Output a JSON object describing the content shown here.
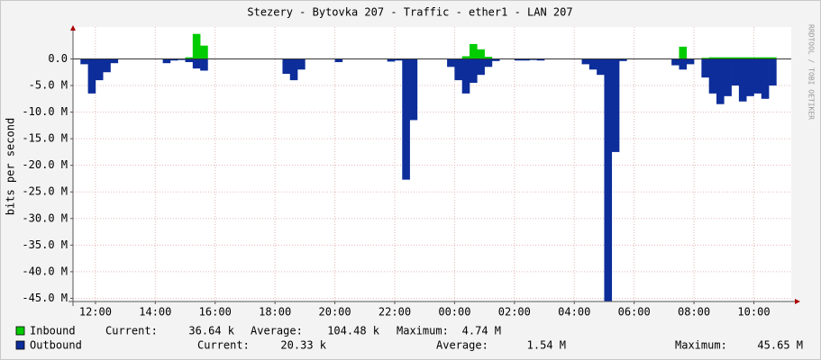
{
  "chart_data": {
    "type": "area",
    "title": "Stezery - Bytovka 207 - Traffic - ether1 - LAN 207",
    "y_label": "bits per second",
    "watermark": "RRDTOOL / TOBI OETIKER",
    "x": [
      11.25,
      11.5,
      11.75,
      12.0,
      12.25,
      12.5,
      12.75,
      13.0,
      13.25,
      13.5,
      13.75,
      14.0,
      14.25,
      14.5,
      14.75,
      15.0,
      15.25,
      15.5,
      15.75,
      16.0,
      16.25,
      16.5,
      16.75,
      17.0,
      17.25,
      17.5,
      17.75,
      18.0,
      18.25,
      18.5,
      18.75,
      19.0,
      19.25,
      19.5,
      19.75,
      20.0,
      20.25,
      20.5,
      20.75,
      21.0,
      21.25,
      21.5,
      21.75,
      22.0,
      22.25,
      22.5,
      22.75,
      23.0,
      23.25,
      23.5,
      23.75,
      24.0,
      24.25,
      24.5,
      24.75,
      25.0,
      25.25,
      25.5,
      25.75,
      26.0,
      26.25,
      26.5,
      26.75,
      27.0,
      27.25,
      27.5,
      27.75,
      28.0,
      28.25,
      28.5,
      28.75,
      29.0,
      29.25,
      29.5,
      29.75,
      30.0,
      30.25,
      30.5,
      30.75,
      31.0,
      31.25,
      31.5,
      31.75,
      32.0,
      32.25,
      32.5,
      32.75,
      33.0,
      33.25,
      33.5,
      33.75,
      34.0,
      34.25,
      34.5,
      34.75,
      35.0
    ],
    "xlim": [
      11.25,
      35.25
    ],
    "xticks": [
      {
        "value": 12,
        "label": "12:00"
      },
      {
        "value": 14,
        "label": "14:00"
      },
      {
        "value": 16,
        "label": "16:00"
      },
      {
        "value": 18,
        "label": "18:00"
      },
      {
        "value": 20,
        "label": "20:00"
      },
      {
        "value": 22,
        "label": "22:00"
      },
      {
        "value": 24,
        "label": "00:00"
      },
      {
        "value": 26,
        "label": "02:00"
      },
      {
        "value": 28,
        "label": "04:00"
      },
      {
        "value": 30,
        "label": "06:00"
      },
      {
        "value": 32,
        "label": "08:00"
      },
      {
        "value": 34,
        "label": "10:00"
      }
    ],
    "ylim": [
      -45.6,
      6.0
    ],
    "yticks": [
      {
        "value": 0,
        "label": "0.0"
      },
      {
        "value": -5,
        "label": "-5.0 M"
      },
      {
        "value": -10,
        "label": "-10.0 M"
      },
      {
        "value": -15,
        "label": "-15.0 M"
      },
      {
        "value": -20,
        "label": "-20.0 M"
      },
      {
        "value": -25,
        "label": "-25.0 M"
      },
      {
        "value": -30,
        "label": "-30.0 M"
      },
      {
        "value": -35,
        "label": "-35.0 M"
      },
      {
        "value": -40,
        "label": "-40.0 M"
      },
      {
        "value": -45,
        "label": "-45.0 M"
      }
    ],
    "grid": true,
    "series": [
      {
        "name": "Inbound",
        "color": "#00cc00",
        "stats": [
          {
            "label": "Current:",
            "value": "36.64 k"
          },
          {
            "label": "Average:",
            "value": "104.48 k"
          },
          {
            "label": "Maximum:",
            "value": "4.74 M"
          }
        ],
        "values": [
          0,
          0,
          0,
          0,
          0,
          0,
          0,
          0,
          0,
          0,
          0,
          0,
          0,
          0,
          0,
          0.3,
          4.7,
          2.5,
          0,
          0,
          0,
          0,
          0,
          0,
          0,
          0,
          0,
          0,
          0,
          0,
          0,
          0,
          0,
          0,
          0,
          0,
          0,
          0,
          0,
          0,
          0,
          0,
          0,
          0,
          0,
          0,
          0,
          0,
          0,
          0,
          0,
          0,
          0.5,
          2.8,
          1.8,
          0.4,
          0,
          0,
          0,
          0,
          0,
          0,
          0,
          0,
          0,
          0,
          0,
          0,
          0,
          0,
          0,
          0,
          0,
          0,
          0,
          0,
          0,
          0,
          0,
          0,
          0,
          2.3,
          0,
          0,
          0.2,
          0.3,
          0.3,
          0.3,
          0.3,
          0.3,
          0.3,
          0.3,
          0.3,
          0.3,
          null,
          null
        ]
      },
      {
        "name": "Outbound",
        "color": "#0c2d9a",
        "stats": [
          {
            "label": "Current:",
            "value": "20.33 k"
          },
          {
            "label": "Average:",
            "value": "1.54 M"
          },
          {
            "label": "Maximum:",
            "value": "45.65 M"
          }
        ],
        "values": [
          0,
          -1.0,
          -6.5,
          -4.0,
          -2.5,
          -0.8,
          0,
          0,
          0,
          0,
          0,
          0,
          -0.8,
          -0.3,
          -0.2,
          -0.6,
          -1.8,
          -2.2,
          0,
          0,
          0,
          0,
          0,
          0,
          0,
          0,
          0,
          0,
          -2.8,
          -4.0,
          -2.0,
          0,
          0,
          0,
          0,
          -0.6,
          0,
          0,
          0,
          0,
          0,
          0,
          -0.5,
          -0.3,
          -22.7,
          -11.5,
          0,
          0,
          0,
          0,
          -1.5,
          -4.0,
          -6.5,
          -4.5,
          -3.0,
          -1.5,
          -0.4,
          0,
          0,
          -0.3,
          -0.3,
          -0.2,
          -0.3,
          0,
          0,
          0,
          0,
          0,
          -1.0,
          -2.0,
          -3.0,
          -45.6,
          -17.5,
          -0.4,
          0,
          0,
          0,
          0,
          0,
          0,
          -1.2,
          -2.0,
          -1.0,
          0,
          -3.5,
          -6.5,
          -8.5,
          -7.0,
          -5.0,
          -8.0,
          -7.0,
          -6.5,
          -7.5,
          -5.0,
          null,
          null
        ]
      }
    ]
  }
}
